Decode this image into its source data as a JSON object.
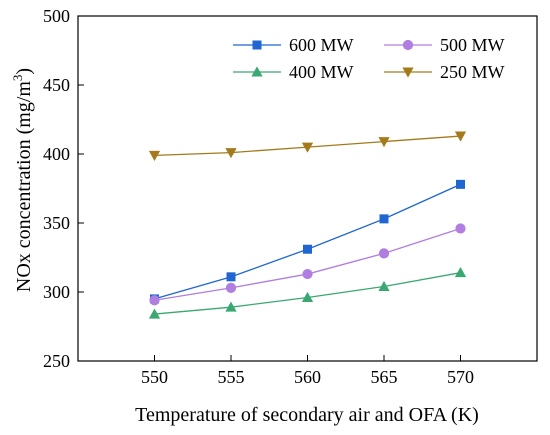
{
  "chart_data": {
    "type": "line",
    "xlabel": "Temperature of secondary air and OFA (K)",
    "ylabel": "NOx concentration (mg/m",
    "ylabel_sup": "3",
    "ylabel_close": ")",
    "xlim": [
      545,
      575
    ],
    "ylim": [
      250,
      500
    ],
    "x": [
      550,
      555,
      560,
      565,
      570
    ],
    "x_ticks": [
      550,
      555,
      560,
      565,
      570
    ],
    "y_ticks": [
      250,
      300,
      350,
      400,
      450,
      500
    ],
    "grid": false,
    "legend_position": "top-right",
    "series": [
      {
        "name": "600 MW",
        "values": [
          295,
          311,
          331,
          353,
          378
        ],
        "color": "#1f66d1",
        "marker": "square"
      },
      {
        "name": "500 MW",
        "values": [
          294,
          303,
          313,
          328,
          346
        ],
        "color": "#b07ee0",
        "marker": "circle"
      },
      {
        "name": "400 MW",
        "values": [
          284,
          289,
          296,
          304,
          314
        ],
        "color": "#3aa873",
        "marker": "triangle-up"
      },
      {
        "name": "250 MW",
        "values": [
          399,
          401,
          405,
          409,
          413
        ],
        "color": "#a47a1c",
        "marker": "triangle-down"
      }
    ]
  }
}
